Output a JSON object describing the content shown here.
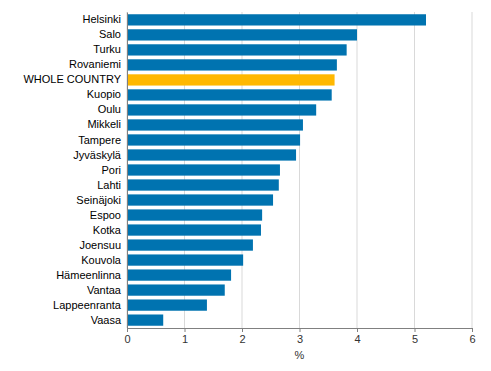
{
  "chart_data": {
    "type": "bar",
    "orientation": "horizontal",
    "categories": [
      "Helsinki",
      "Salo",
      "Turku",
      "Rovaniemi",
      "WHOLE COUNTRY",
      "Kuopio",
      "Oulu",
      "Mikkeli",
      "Tampere",
      "Jyväskylä",
      "Pori",
      "Lahti",
      "Seinäjoki",
      "Espoo",
      "Kotka",
      "Joensuu",
      "Kouvola",
      "Hämeenlinna",
      "Vantaa",
      "Lappeenranta",
      "Vaasa"
    ],
    "values": [
      5.2,
      4.0,
      3.82,
      3.65,
      3.61,
      3.56,
      3.29,
      3.06,
      3.01,
      2.94,
      2.66,
      2.64,
      2.54,
      2.35,
      2.33,
      2.19,
      2.02,
      1.81,
      1.7,
      1.39,
      0.63
    ],
    "colors": [
      "#0073b0",
      "#0073b0",
      "#0073b0",
      "#0073b0",
      "#ffb800",
      "#0073b0",
      "#0073b0",
      "#0073b0",
      "#0073b0",
      "#0073b0",
      "#0073b0",
      "#0073b0",
      "#0073b0",
      "#0073b0",
      "#0073b0",
      "#0073b0",
      "#0073b0",
      "#0073b0",
      "#0073b0",
      "#0073b0",
      "#0073b0"
    ],
    "x_label": "%",
    "xlim": [
      0,
      6
    ],
    "xticks": [
      0,
      1,
      2,
      3,
      4,
      5,
      6
    ],
    "grid": true
  }
}
